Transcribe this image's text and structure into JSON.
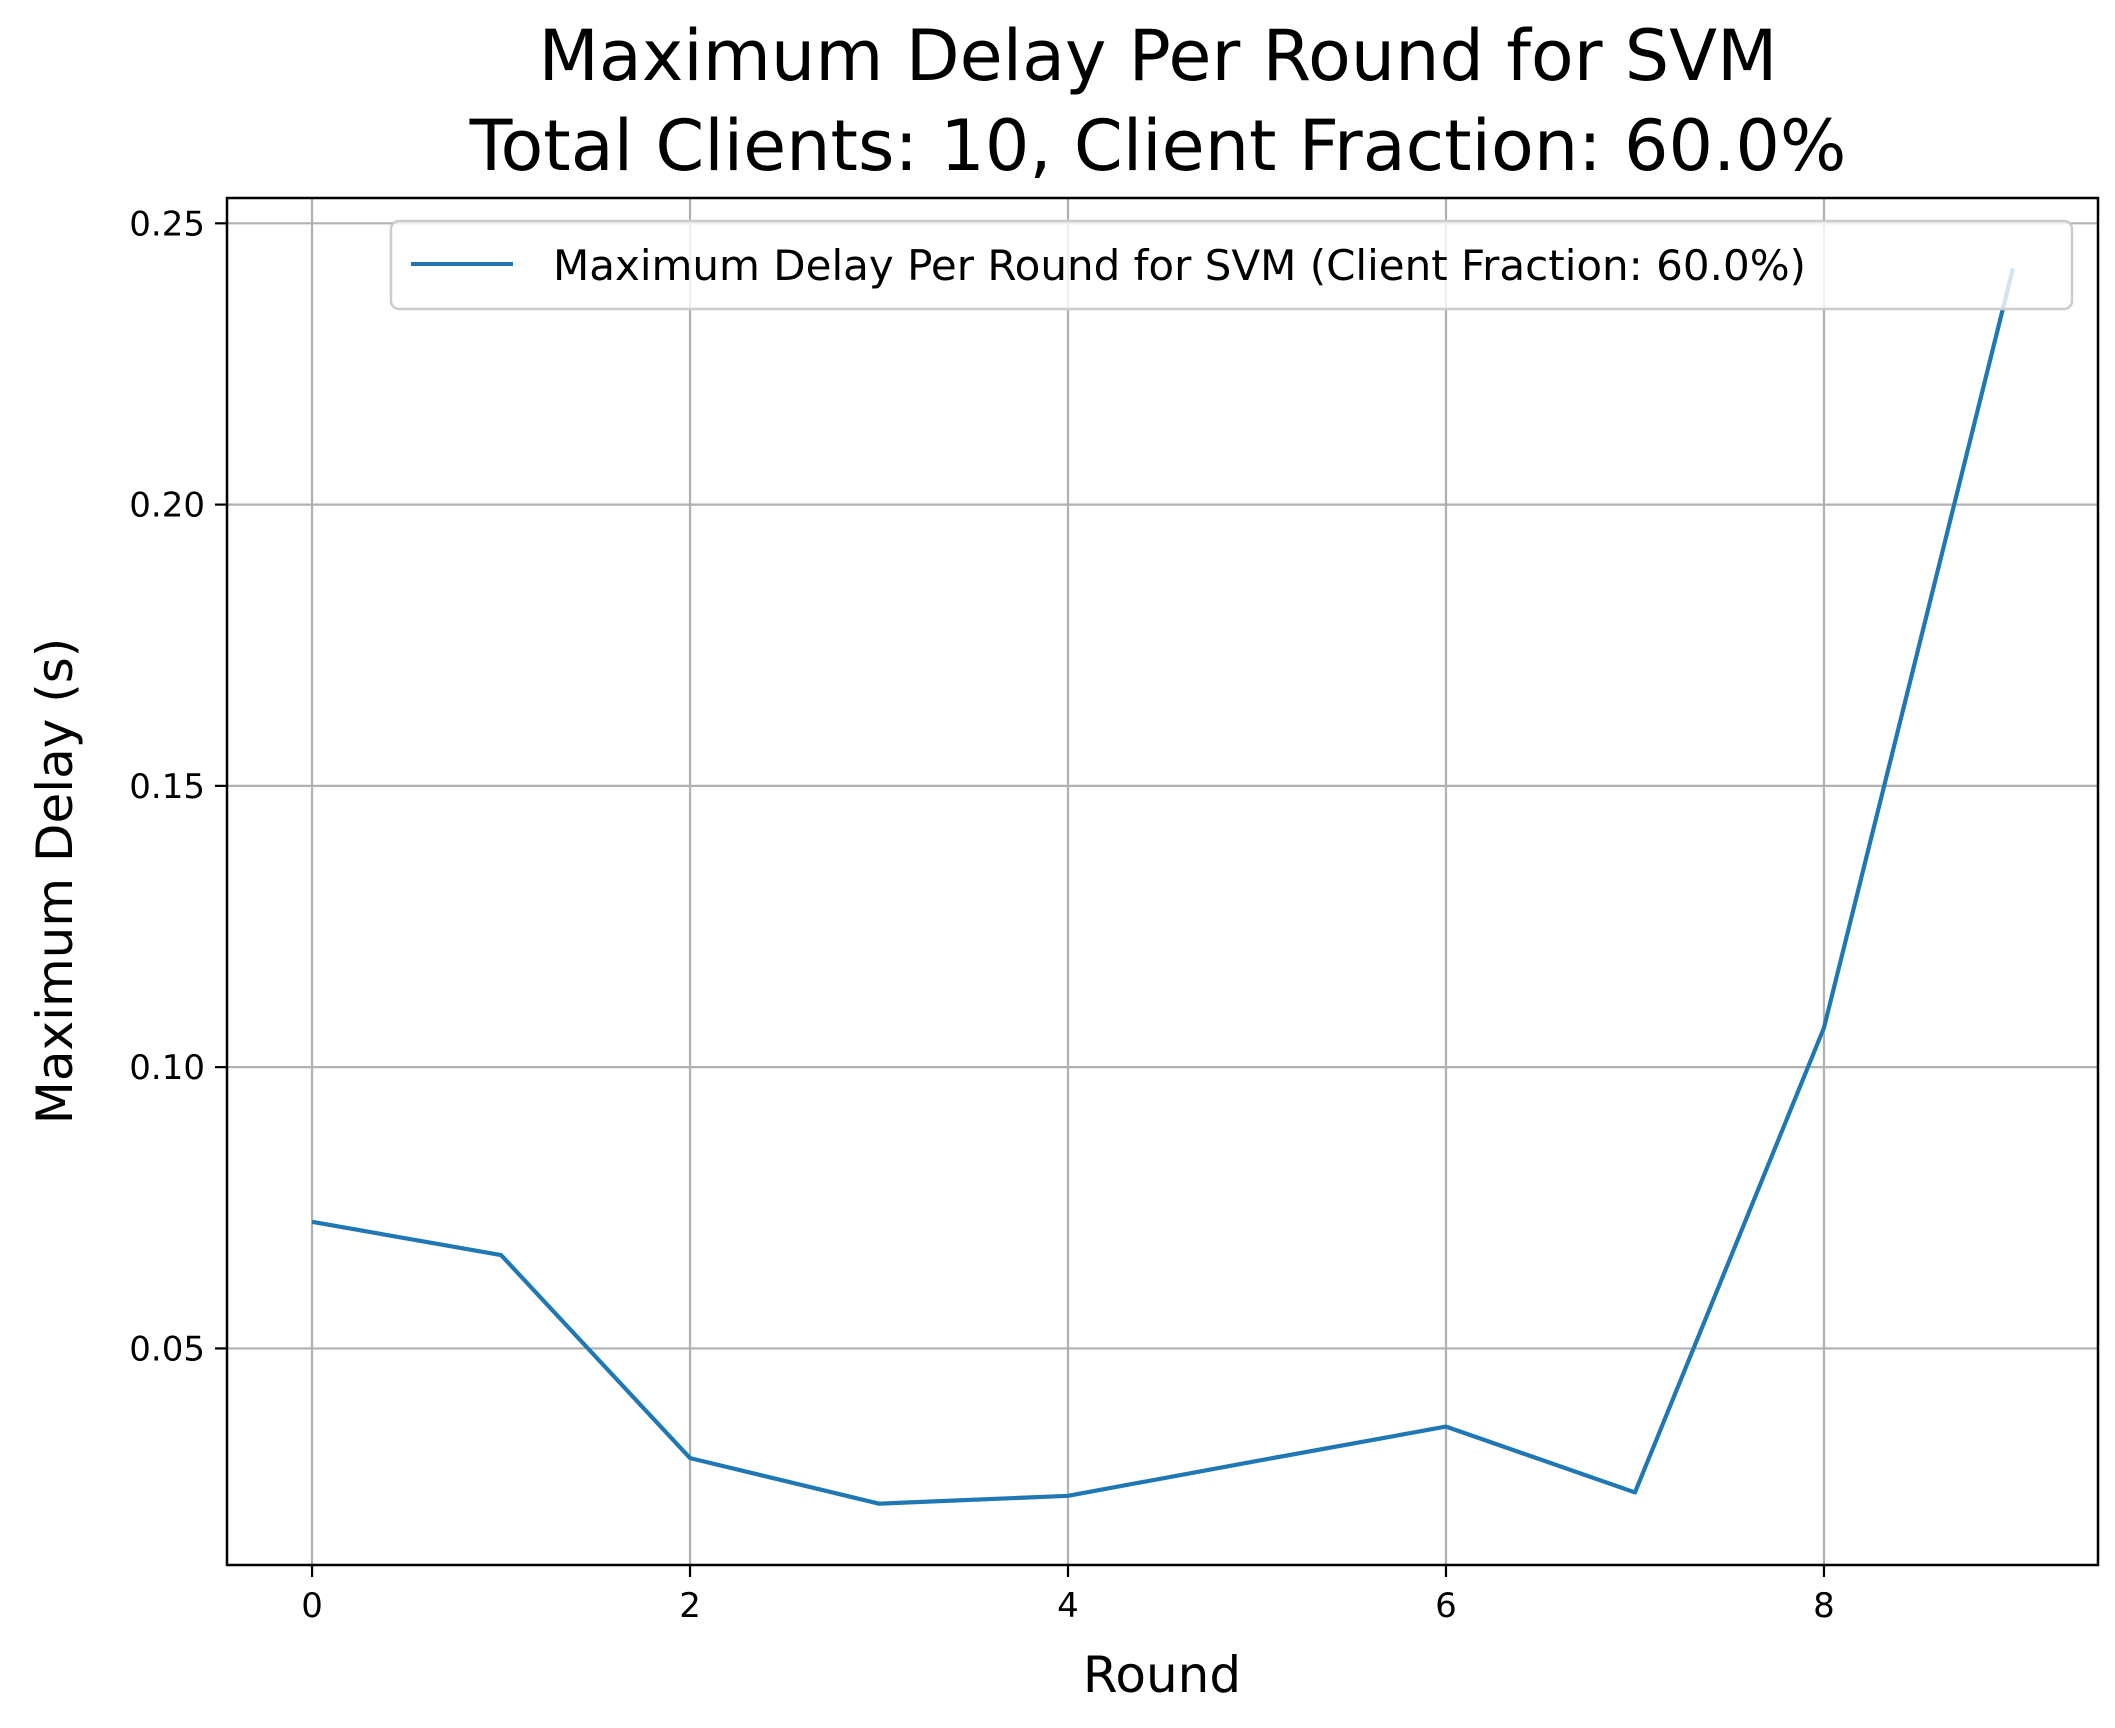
{
  "chart_data": {
    "type": "line",
    "title_line1": "Maximum Delay Per Round for SVM",
    "title_line2": "Total Clients: 10, Client Fraction: 60.0%",
    "xlabel": "Round",
    "ylabel": "Maximum Delay (s)",
    "xlim": [
      -0.45,
      9.45
    ],
    "ylim": [
      0.0115,
      0.2545
    ],
    "xticks": [
      0,
      2,
      4,
      6,
      8
    ],
    "xtick_labels": [
      "0",
      "2",
      "4",
      "6",
      "8"
    ],
    "yticks": [
      0.05,
      0.1,
      0.15,
      0.2,
      0.25
    ],
    "ytick_labels": [
      "0.05",
      "0.10",
      "0.15",
      "0.20",
      "0.25"
    ],
    "grid": true,
    "legend_position": "top-right",
    "series": [
      {
        "name": "Maximum Delay Per Round for SVM (Client Fraction: 60.0%)",
        "color": "#1f77b4",
        "x": [
          0,
          1,
          2,
          3,
          4,
          5,
          6,
          7,
          8,
          9
        ],
        "y": [
          0.0725,
          0.0666,
          0.0305,
          0.0224,
          0.0238,
          0.03,
          0.0361,
          0.0244,
          0.107,
          0.242
        ]
      }
    ]
  }
}
